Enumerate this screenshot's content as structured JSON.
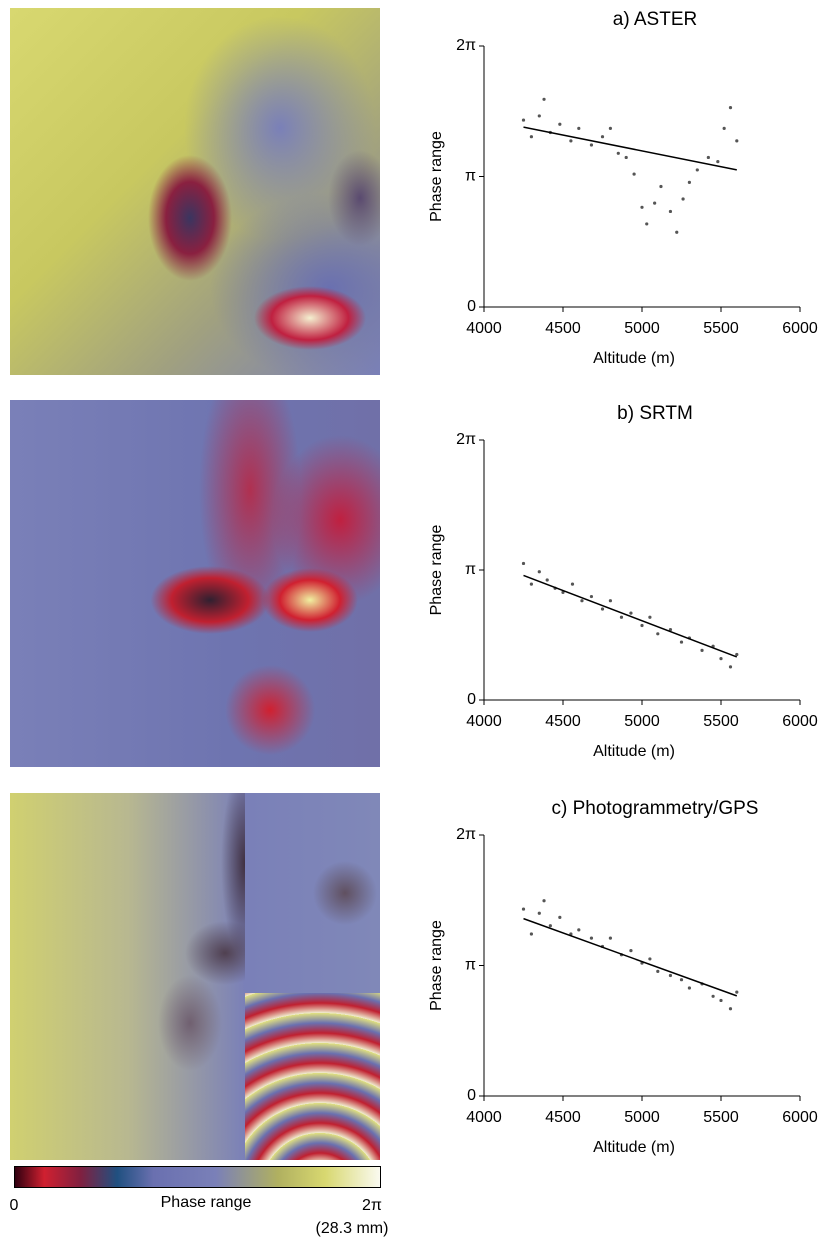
{
  "chart_data": [
    {
      "type": "scatter",
      "title": "a) ASTER",
      "x_label": "Altitude (m)",
      "y_label": "Phase range",
      "xlim": [
        4000,
        6000
      ],
      "xticks": [
        4000,
        4500,
        5000,
        5500,
        6000
      ],
      "ylim": [
        0,
        6.2832
      ],
      "yticks": [
        0,
        {
          "value": 3.1416,
          "label": "π"
        },
        {
          "value": 6.2832,
          "label": "2π"
        }
      ],
      "x": [
        4250,
        4300,
        4350,
        4380,
        4420,
        4480,
        4550,
        4600,
        4680,
        4750,
        4800,
        4850,
        4900,
        4950,
        5000,
        5030,
        5080,
        5120,
        5180,
        5220,
        5260,
        5300,
        5350,
        5420,
        5480,
        5520,
        5560,
        5600
      ],
      "values": [
        4.5,
        4.1,
        4.6,
        5.0,
        4.2,
        4.4,
        4.0,
        4.3,
        3.9,
        4.1,
        4.3,
        3.7,
        3.6,
        3.2,
        2.4,
        2.0,
        2.5,
        2.9,
        2.3,
        1.8,
        2.6,
        3.0,
        3.3,
        3.6,
        3.5,
        4.3,
        4.8,
        4.0
      ],
      "color": "#555555",
      "fit": {
        "x": [
          4250,
          5600
        ],
        "values": [
          4.33,
          3.3
        ],
        "color": "#000000"
      }
    },
    {
      "type": "scatter",
      "title": "b) SRTM",
      "x_label": "Altitude (m)",
      "y_label": "Phase range",
      "xlim": [
        4000,
        6000
      ],
      "xticks": [
        4000,
        4500,
        5000,
        5500,
        6000
      ],
      "ylim": [
        0,
        6.2832
      ],
      "yticks": [
        0,
        {
          "value": 3.1416,
          "label": "π"
        },
        {
          "value": 6.2832,
          "label": "2π"
        }
      ],
      "x": [
        4250,
        4300,
        4350,
        4400,
        4450,
        4500,
        4560,
        4620,
        4680,
        4750,
        4800,
        4870,
        4930,
        5000,
        5050,
        5100,
        5180,
        5250,
        5300,
        5380,
        5450,
        5500,
        5560,
        5600
      ],
      "values": [
        3.3,
        2.8,
        3.1,
        2.9,
        2.7,
        2.6,
        2.8,
        2.4,
        2.5,
        2.2,
        2.4,
        2.0,
        2.1,
        1.8,
        2.0,
        1.6,
        1.7,
        1.4,
        1.5,
        1.2,
        1.3,
        1.0,
        0.8,
        1.1
      ],
      "color": "#555555",
      "fit": {
        "x": [
          4250,
          5600
        ],
        "values": [
          3.01,
          1.04
        ],
        "color": "#000000"
      }
    },
    {
      "type": "scatter",
      "title": "c) Photogrammetry/GPS",
      "x_label": "Altitude (m)",
      "y_label": "Phase range",
      "xlim": [
        4000,
        6000
      ],
      "xticks": [
        4000,
        4500,
        5000,
        5500,
        6000
      ],
      "ylim": [
        0,
        6.2832
      ],
      "yticks": [
        0,
        {
          "value": 3.1416,
          "label": "π"
        },
        {
          "value": 6.2832,
          "label": "2π"
        }
      ],
      "x": [
        4250,
        4300,
        4350,
        4380,
        4420,
        4480,
        4550,
        4600,
        4680,
        4750,
        4800,
        4870,
        4930,
        5000,
        5050,
        5100,
        5180,
        5250,
        5300,
        5380,
        5450,
        5500,
        5560,
        5600
      ],
      "values": [
        4.5,
        3.9,
        4.4,
        4.7,
        4.1,
        4.3,
        3.9,
        4.0,
        3.8,
        3.6,
        3.8,
        3.4,
        3.5,
        3.2,
        3.3,
        3.0,
        2.9,
        2.8,
        2.6,
        2.7,
        2.4,
        2.3,
        2.1,
        2.5
      ],
      "color": "#555555",
      "fit": {
        "x": [
          4250,
          5600
        ],
        "values": [
          4.27,
          2.41
        ],
        "color": "#000000"
      }
    }
  ],
  "colorbar": {
    "min_label": "0",
    "label": "Phase range",
    "max_label": "2π",
    "unit_note": "(28.3 mm)"
  }
}
